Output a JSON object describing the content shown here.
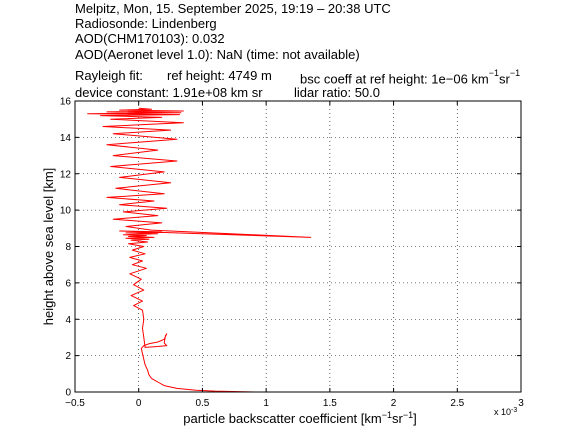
{
  "header": {
    "line1": "Melpitz, Mon, 15. September 2025, 19:19 – 20:38 UTC",
    "line2": "Radiosonde: Lindenberg",
    "line3": "AOD(CHM170103): 0.032",
    "line4": "AOD(Aeronet level 1.0): NaN   (time: not available)",
    "rayleigh_label": "Rayleigh fit:",
    "ref_height": "ref height: 4749 m",
    "bsc_coeff_prefix": "bsc coeff at ref height: 1e−06 km",
    "bsc_coeff_unit_exp1": "−1",
    "bsc_coeff_unit_mid": "sr",
    "bsc_coeff_unit_exp2": "−1",
    "device_constant": "device constant: 1.91e+08 km sr",
    "lidar_ratio": "lidar ratio: 50.0"
  },
  "chart_data": {
    "type": "line",
    "xlabel": "particle backscatter coefficient [km⁻¹sr⁻¹]",
    "xlabel_parts": {
      "main": "particle backscatter coefficient [km",
      "exp1": "−1",
      "mid": "sr",
      "exp2": "−1",
      "end": "]"
    },
    "ylabel": "height above sea level [km]",
    "xlim": [
      -0.5,
      3
    ],
    "ylim": [
      0,
      16
    ],
    "x_multiplier": "x 10",
    "x_multiplier_exp": "-3",
    "xticks": [
      -0.5,
      0,
      0.5,
      1,
      1.5,
      2,
      2.5,
      3
    ],
    "xtick_labels": [
      "−0.5",
      "0",
      "0.5",
      "1",
      "1.5",
      "2",
      "2.5",
      "3"
    ],
    "yticks": [
      0,
      2,
      4,
      6,
      8,
      10,
      12,
      14,
      16
    ],
    "ytick_labels": [
      "0",
      "2",
      "4",
      "6",
      "8",
      "10",
      "12",
      "14",
      "16"
    ],
    "grid": true,
    "line_color": "#ff0000",
    "series": [
      {
        "x": [
          0.92,
          0.6,
          0.45,
          0.3,
          0.2,
          0.15,
          0.1,
          0.08,
          0.07,
          0.05,
          0.04,
          0.03,
          0.02,
          0.04,
          0.08,
          0.15,
          0.2,
          0.22,
          0.21,
          0.2,
          0.21,
          0.22,
          0.15,
          0.05,
          0.04,
          0.03,
          0.04,
          0.03,
          -0.04,
          0.03,
          -0.06,
          0.04,
          -0.04,
          0.02,
          -0.07,
          0.06,
          -0.05,
          0.03,
          -0.07,
          0.05,
          -0.05,
          0.04,
          -0.08,
          0.07,
          -0.06,
          0.08,
          -0.1,
          0.12,
          -0.08,
          0.06,
          -0.12,
          0.15,
          -0.1,
          0.18,
          -0.15,
          1.35,
          0.1,
          -0.1,
          0.18,
          -0.2,
          0.15,
          -0.12,
          0.22,
          -0.15,
          0.12,
          -0.25,
          0.2,
          -0.18,
          0.25,
          -0.15,
          0.2,
          -0.22,
          0.3,
          -0.2,
          0.15,
          -0.25,
          0.3,
          -0.2,
          0.25,
          -0.28,
          0.35,
          -0.22,
          0.18,
          -0.3,
          0.32,
          -0.4,
          0.33,
          -0.25,
          0.35,
          -0.15,
          0.1,
          0.0
        ],
        "y": [
          0.0,
          0.05,
          0.1,
          0.2,
          0.35,
          0.55,
          0.75,
          0.95,
          1.2,
          1.5,
          1.8,
          2.1,
          2.4,
          2.55,
          2.65,
          2.75,
          2.9,
          3.2,
          3.1,
          2.7,
          2.62,
          2.55,
          2.5,
          2.45,
          3.0,
          3.5,
          4.0,
          4.5,
          4.75,
          5.0,
          5.3,
          5.6,
          5.9,
          6.2,
          6.5,
          6.8,
          7.0,
          7.2,
          7.4,
          7.6,
          7.8,
          8.0,
          8.15,
          8.25,
          8.35,
          8.4,
          8.45,
          8.5,
          8.55,
          8.6,
          8.65,
          8.7,
          8.75,
          8.8,
          8.85,
          8.5,
          8.9,
          9.1,
          9.3,
          9.5,
          9.7,
          9.9,
          10.1,
          10.3,
          10.5,
          10.7,
          10.9,
          11.2,
          11.5,
          11.8,
          12.1,
          12.4,
          12.7,
          13.0,
          13.3,
          13.6,
          13.9,
          14.2,
          14.4,
          14.6,
          14.8,
          15.0,
          15.1,
          15.2,
          15.25,
          15.3,
          15.35,
          15.4,
          15.45,
          15.5,
          15.55,
          15.6
        ]
      }
    ]
  }
}
